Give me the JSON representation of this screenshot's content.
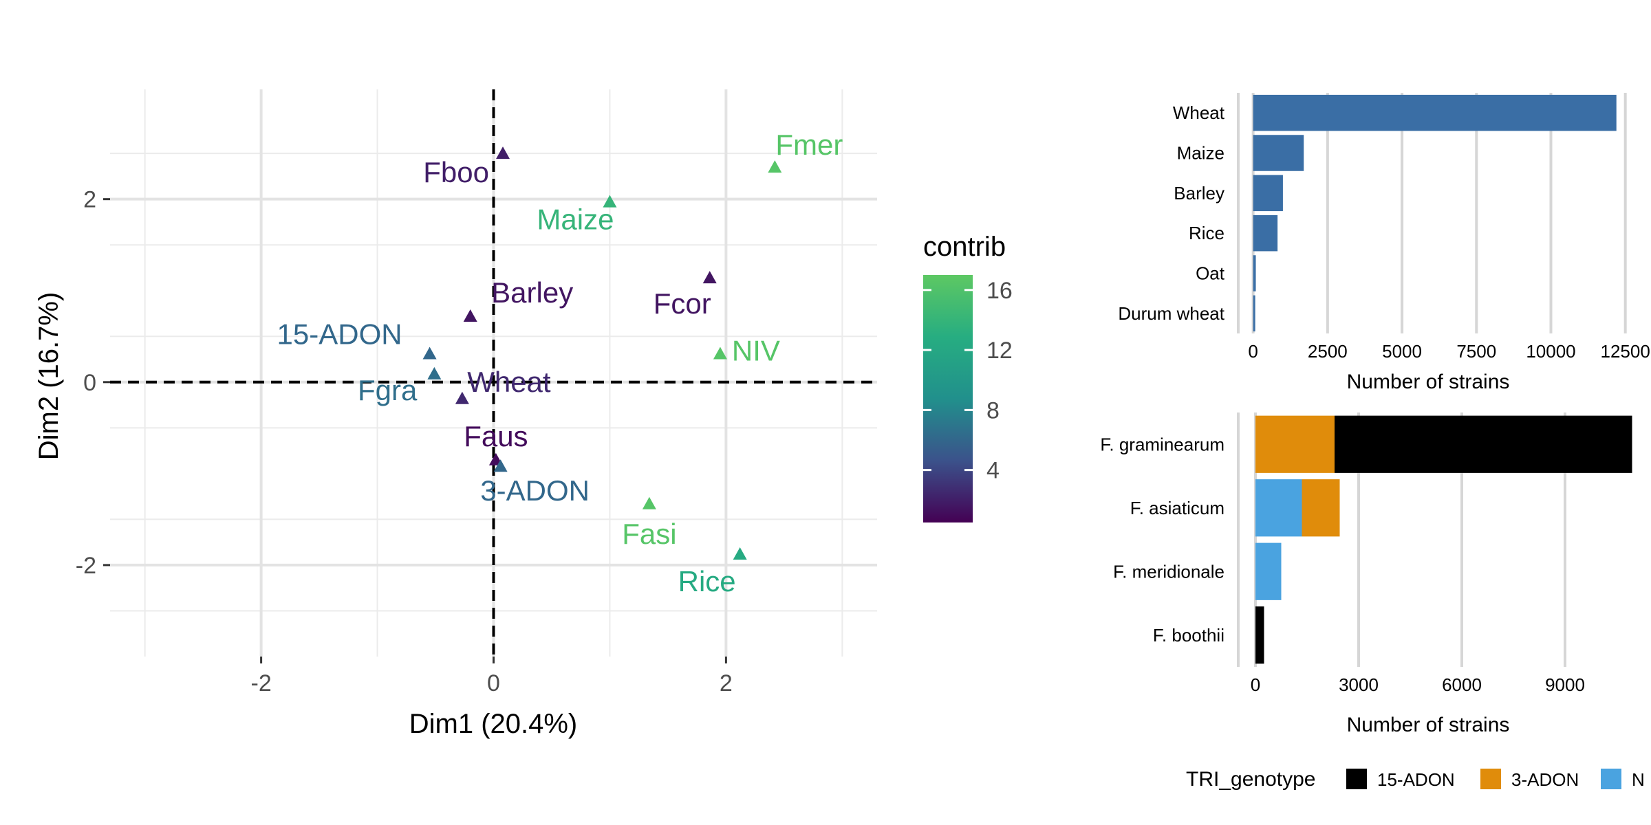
{
  "chart_data": [
    {
      "type": "scatter",
      "xlabel": "Dim1 (20.4%)",
      "ylabel": "Dim2 (16.7%)",
      "xlim": [
        -3.3,
        3.3
      ],
      "ylim": [
        -3.0,
        3.2
      ],
      "xticks": [
        -2,
        0,
        2
      ],
      "xtick_labels": [
        "-2",
        "0",
        "2"
      ],
      "yticks": [
        -2,
        0,
        2
      ],
      "ytick_labels": [
        "-2",
        "0",
        "2"
      ],
      "grid": true,
      "reference_lines": {
        "x": 0,
        "y": 0,
        "style": "dashed"
      },
      "color_legend": {
        "title": "contrib",
        "ticks": [
          4,
          8,
          12,
          16
        ],
        "tick_labels": [
          "4",
          "8",
          "12",
          "16"
        ],
        "range": [
          0.5,
          17
        ],
        "colormap": [
          "#440154",
          "#3b528b",
          "#21908c",
          "#27ad81",
          "#5dc863"
        ],
        "placement": "right"
      },
      "points": [
        {
          "label": "Fboo",
          "x": 0.08,
          "y": 2.5,
          "contrib": 2.0
        },
        {
          "label": "Maize",
          "x": 1.0,
          "y": 1.97,
          "contrib": 14.0
        },
        {
          "label": "Fmer",
          "x": 2.42,
          "y": 2.35,
          "contrib": 16.5
        },
        {
          "label": "Barley",
          "x": -0.2,
          "y": 0.72,
          "contrib": 1.5
        },
        {
          "label": "Fcor",
          "x": 1.86,
          "y": 1.14,
          "contrib": 1.5
        },
        {
          "label": "15-ADON",
          "x": -0.55,
          "y": 0.31,
          "contrib": 6.0
        },
        {
          "label": "NIV",
          "x": 1.95,
          "y": 0.31,
          "contrib": 16.5
        },
        {
          "label": "Fgra",
          "x": -0.51,
          "y": 0.09,
          "contrib": 6.5
        },
        {
          "label": "Wheat",
          "x": -0.27,
          "y": -0.18,
          "contrib": 2.5
        },
        {
          "label": "Faus",
          "x": 0.02,
          "y": -0.85,
          "contrib": 1.0
        },
        {
          "label": "3-ADON",
          "x": 0.06,
          "y": -0.92,
          "contrib": 6.0
        },
        {
          "label": "Fasi",
          "x": 1.34,
          "y": -1.33,
          "contrib": 16.5
        },
        {
          "label": "Rice",
          "x": 2.12,
          "y": -1.88,
          "contrib": 12.5
        }
      ]
    },
    {
      "type": "bar",
      "orientation": "horizontal",
      "categories": [
        "Wheat",
        "Maize",
        "Barley",
        "Rice",
        "Oat",
        "Durum wheat"
      ],
      "values": [
        12200,
        1700,
        1000,
        820,
        90,
        70
      ],
      "xlabel": "Number of strains",
      "ylabel": "",
      "xlim": [
        -500,
        12900
      ],
      "xticks": [
        0,
        2500,
        5000,
        7500,
        10000,
        12500
      ],
      "xtick_labels": [
        "0",
        "2500",
        "5000",
        "7500",
        "10000",
        "12500"
      ],
      "color": "#3a6ea5",
      "grid": true
    },
    {
      "type": "bar",
      "orientation": "horizontal",
      "stacked": true,
      "categories": [
        "F. graminearum",
        "F. asiaticum",
        "F. meridionale",
        "F. boothii"
      ],
      "series": [
        {
          "name": "NIV",
          "values": [
            0,
            1350,
            750,
            0
          ],
          "color": "#4aa3e0"
        },
        {
          "name": "3-ADON",
          "values": [
            2300,
            1100,
            0,
            0
          ],
          "color": "#e08c0b"
        },
        {
          "name": "15-ADON",
          "values": [
            8650,
            0,
            0,
            250
          ],
          "color": "#000000"
        }
      ],
      "xlabel": "Number of strains",
      "ylabel": "",
      "xlim": [
        -500,
        11500
      ],
      "xticks": [
        0,
        3000,
        6000,
        9000
      ],
      "xtick_labels": [
        "0",
        "3000",
        "6000",
        "9000"
      ],
      "grid": true,
      "legend": {
        "title": "TRI_genotype",
        "entries": [
          "15-ADON",
          "3-ADON",
          "N"
        ],
        "colors": [
          "#000000",
          "#e08c0b",
          "#4aa3e0"
        ],
        "placement": "bottom"
      }
    }
  ]
}
